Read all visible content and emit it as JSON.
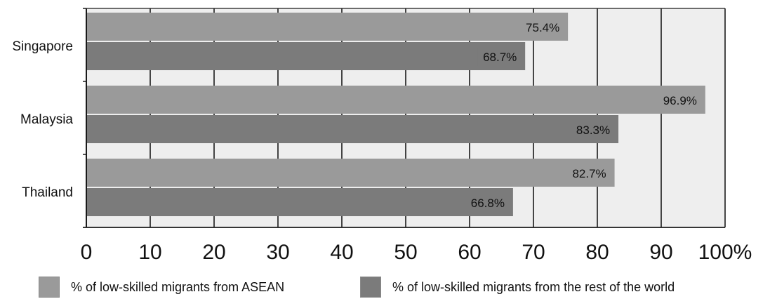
{
  "chart_data": {
    "type": "bar",
    "orientation": "horizontal",
    "categories": [
      "Singapore",
      "Malaysia",
      "Thailand"
    ],
    "series": [
      {
        "name": "% of low-skilled migrants from ASEAN",
        "values": [
          75.4,
          96.9,
          82.7
        ],
        "labels": [
          "75.4%",
          "96.9%",
          "82.7%"
        ],
        "color": "#9a9a9a"
      },
      {
        "name": "% of low-skilled migrants from the rest of the world",
        "values": [
          68.7,
          83.3,
          66.8
        ],
        "labels": [
          "68.7%",
          "83.3%",
          "66.8%"
        ],
        "color": "#7b7b7b"
      }
    ],
    "x_ticks": [
      "0",
      "10",
      "20",
      "30",
      "40",
      "50",
      "60",
      "70",
      "80",
      "90",
      "100%"
    ],
    "xlim": [
      0,
      100
    ],
    "grid": true,
    "legend_position": "bottom",
    "plot_background": "#eeeeee",
    "title": "",
    "xlabel": "",
    "ylabel": ""
  }
}
